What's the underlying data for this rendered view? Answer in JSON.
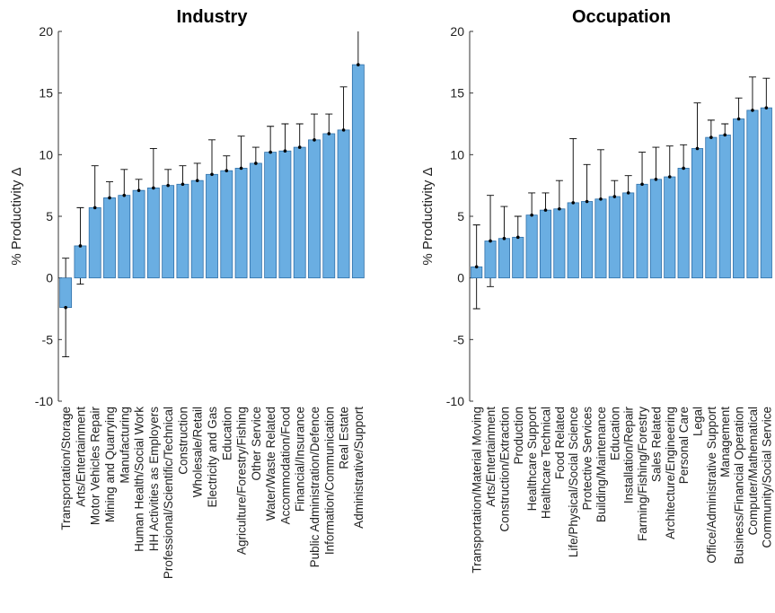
{
  "chart_data": [
    {
      "type": "bar",
      "title": "Industry",
      "ylabel": "% Productivity Δ",
      "color": "#6aaee2",
      "categories": [
        "Transportation/Storage",
        "Arts/Entertainment",
        "Motor Vehicles Repair",
        "Mining and Quarrying",
        "Manufacturing",
        "Human Health/Social Work",
        "HH Activities as Employers",
        "Professional/Scientific/Technical",
        "Construction",
        "Wholesale/Retail",
        "Electricity and Gas",
        "Education",
        "Agriculture/Forestry/Fishing",
        "Other Service",
        "Water/Waste Related",
        "Accommodation/Food",
        "Financial/Insurance",
        "Public Administration/Defence",
        "Information/Communication",
        "Real Estate",
        "Administrative/Support"
      ],
      "values": [
        -2.4,
        2.6,
        5.7,
        6.5,
        6.7,
        7.1,
        7.3,
        7.5,
        7.6,
        7.9,
        8.4,
        8.7,
        8.9,
        9.3,
        10.2,
        10.3,
        10.6,
        11.2,
        11.7,
        12.0,
        17.3
      ],
      "errors": [
        4.0,
        3.1,
        3.4,
        1.3,
        2.1,
        0.9,
        3.2,
        1.3,
        1.5,
        1.4,
        2.8,
        1.2,
        2.6,
        1.3,
        2.1,
        2.2,
        1.9,
        2.1,
        1.6,
        3.5,
        2.9
      ],
      "ylim": [
        -10,
        20
      ],
      "yticks": [
        -10,
        -5,
        0,
        5,
        10,
        15,
        20
      ]
    },
    {
      "type": "bar",
      "title": "Occupation",
      "ylabel": "% Productivity Δ",
      "color": "#6aaee2",
      "categories": [
        "Transportation/Material Moving",
        "Arts/Entertainment",
        "Construction/Extraction",
        "Production",
        "Healthcare Support",
        "Healthcare Technical",
        "Food Related",
        "Life/Physical/Social Science",
        "Protective Services",
        "Building/Maintenance",
        "Education",
        "Installation/Repair",
        "Farming/Fishing/Forestry",
        "Sales Related",
        "Architecture/Engineering",
        "Personal Care",
        "Legal",
        "Office/Administrative Support",
        "Management",
        "Business/Financial Operation",
        "Computer/Mathematical",
        "Community/Social Service"
      ],
      "values": [
        0.9,
        3.0,
        3.2,
        3.3,
        5.1,
        5.5,
        5.6,
        6.1,
        6.2,
        6.4,
        6.6,
        6.9,
        7.6,
        8.0,
        8.2,
        8.9,
        10.5,
        11.4,
        11.6,
        12.9,
        13.6,
        13.8
      ],
      "errors": [
        3.4,
        3.7,
        2.6,
        1.7,
        1.8,
        1.4,
        2.3,
        5.2,
        3.0,
        4.0,
        1.3,
        1.4,
        2.6,
        2.6,
        2.5,
        1.9,
        3.7,
        1.4,
        0.9,
        1.7,
        2.7,
        2.4
      ],
      "ylim": [
        -10,
        20
      ],
      "yticks": [
        -10,
        -5,
        0,
        5,
        10,
        15,
        20
      ]
    }
  ]
}
